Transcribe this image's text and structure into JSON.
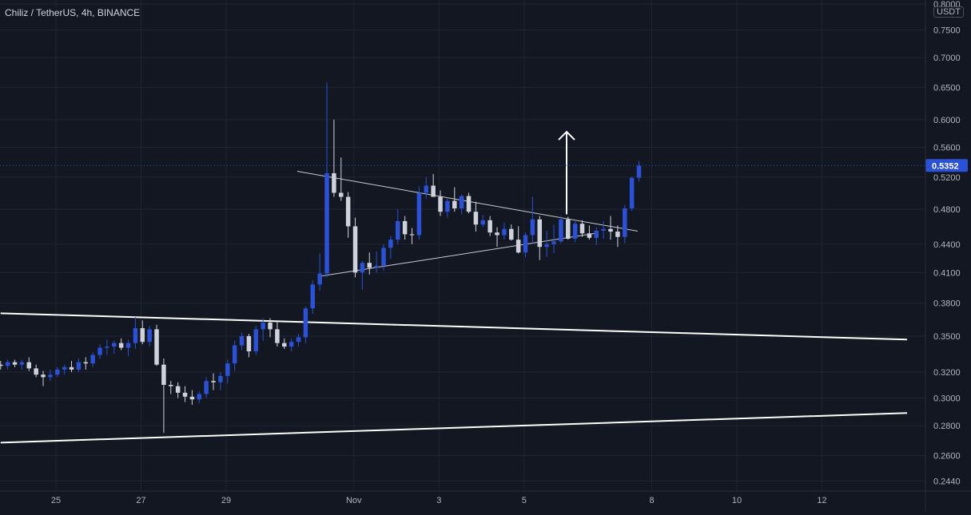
{
  "header": {
    "ticker": "Chiliz / TetherUS, 4h, BINANCE",
    "currency": "USDT"
  },
  "colors": {
    "background": "#131722",
    "grid": "#1f2433",
    "up": "#2a51d6",
    "down": "#cfd2da",
    "axis_text": "#b2b5be",
    "price_line": "#2a51d6",
    "trendline": "#ffffff"
  },
  "chart_data": {
    "type": "candlestick",
    "title": "Chiliz / TetherUS, 4h, BINANCE",
    "y_scale": "log",
    "ylim": [
      0.238,
      0.808
    ],
    "grid": true,
    "y_ticks": [
      "0.8000",
      "0.7500",
      "0.7000",
      "0.6500",
      "0.6000",
      "0.5600",
      "0.5200",
      "0.4800",
      "0.4400",
      "0.4100",
      "0.3800",
      "0.3500",
      "0.3200",
      "0.3000",
      "0.2800",
      "0.2600",
      "0.2440"
    ],
    "x_ticks": [
      {
        "label": "25",
        "day": 25
      },
      {
        "label": "27",
        "day": 27
      },
      {
        "label": "29",
        "day": 29
      },
      {
        "label": "Nov",
        "day": 32
      },
      {
        "label": "3",
        "day": 34
      },
      {
        "label": "5",
        "day": 36
      },
      {
        "label": "8",
        "day": 39
      },
      {
        "label": "10",
        "day": 41
      },
      {
        "label": "12",
        "day": 43
      }
    ],
    "last_price": "0.5352",
    "candles": [
      [
        0.326,
        0.329,
        0.322,
        0.325
      ],
      [
        0.325,
        0.33,
        0.322,
        0.328
      ],
      [
        0.328,
        0.33,
        0.324,
        0.326
      ],
      [
        0.326,
        0.33,
        0.322,
        0.328
      ],
      [
        0.328,
        0.332,
        0.321,
        0.323
      ],
      [
        0.323,
        0.326,
        0.316,
        0.318
      ],
      [
        0.318,
        0.321,
        0.309,
        0.316
      ],
      [
        0.316,
        0.322,
        0.313,
        0.318
      ],
      [
        0.318,
        0.324,
        0.316,
        0.322
      ],
      [
        0.322,
        0.326,
        0.318,
        0.324
      ],
      [
        0.324,
        0.329,
        0.32,
        0.322
      ],
      [
        0.322,
        0.331,
        0.32,
        0.328
      ],
      [
        0.328,
        0.332,
        0.322,
        0.327
      ],
      [
        0.327,
        0.336,
        0.324,
        0.334
      ],
      [
        0.334,
        0.343,
        0.331,
        0.34
      ],
      [
        0.34,
        0.347,
        0.334,
        0.341
      ],
      [
        0.341,
        0.346,
        0.335,
        0.344
      ],
      [
        0.344,
        0.348,
        0.338,
        0.34
      ],
      [
        0.34,
        0.347,
        0.333,
        0.344
      ],
      [
        0.344,
        0.367,
        0.339,
        0.357
      ],
      [
        0.357,
        0.364,
        0.343,
        0.345
      ],
      [
        0.345,
        0.359,
        0.341,
        0.356
      ],
      [
        0.356,
        0.36,
        0.325,
        0.326
      ],
      [
        0.326,
        0.331,
        0.275,
        0.31
      ],
      [
        0.31,
        0.313,
        0.303,
        0.309
      ],
      [
        0.309,
        0.312,
        0.3,
        0.304
      ],
      [
        0.304,
        0.309,
        0.297,
        0.301
      ],
      [
        0.301,
        0.306,
        0.295,
        0.299
      ],
      [
        0.299,
        0.305,
        0.296,
        0.303
      ],
      [
        0.303,
        0.316,
        0.3,
        0.313
      ],
      [
        0.313,
        0.319,
        0.306,
        0.312
      ],
      [
        0.312,
        0.32,
        0.306,
        0.317
      ],
      [
        0.317,
        0.33,
        0.311,
        0.327
      ],
      [
        0.327,
        0.346,
        0.321,
        0.342
      ],
      [
        0.342,
        0.353,
        0.338,
        0.35
      ],
      [
        0.35,
        0.352,
        0.332,
        0.337
      ],
      [
        0.337,
        0.359,
        0.334,
        0.356
      ],
      [
        0.356,
        0.366,
        0.346,
        0.362
      ],
      [
        0.362,
        0.366,
        0.349,
        0.356
      ],
      [
        0.356,
        0.363,
        0.341,
        0.344
      ],
      [
        0.344,
        0.348,
        0.339,
        0.341
      ],
      [
        0.341,
        0.348,
        0.337,
        0.345
      ],
      [
        0.345,
        0.352,
        0.341,
        0.349
      ],
      [
        0.349,
        0.377,
        0.344,
        0.375
      ],
      [
        0.375,
        0.402,
        0.37,
        0.398
      ],
      [
        0.398,
        0.43,
        0.392,
        0.409
      ],
      [
        0.409,
        0.658,
        0.405,
        0.525
      ],
      [
        0.525,
        0.6,
        0.495,
        0.5
      ],
      [
        0.5,
        0.546,
        0.49,
        0.495
      ],
      [
        0.495,
        0.501,
        0.447,
        0.46
      ],
      [
        0.46,
        0.47,
        0.405,
        0.41
      ],
      [
        0.41,
        0.422,
        0.393,
        0.42
      ],
      [
        0.42,
        0.431,
        0.408,
        0.415
      ],
      [
        0.415,
        0.432,
        0.41,
        0.417
      ],
      [
        0.417,
        0.44,
        0.412,
        0.436
      ],
      [
        0.436,
        0.449,
        0.424,
        0.445
      ],
      [
        0.445,
        0.48,
        0.44,
        0.466
      ],
      [
        0.466,
        0.472,
        0.445,
        0.451
      ],
      [
        0.451,
        0.458,
        0.44,
        0.45
      ],
      [
        0.45,
        0.508,
        0.445,
        0.5
      ],
      [
        0.5,
        0.52,
        0.493,
        0.509
      ],
      [
        0.509,
        0.524,
        0.495,
        0.495
      ],
      [
        0.495,
        0.503,
        0.472,
        0.477
      ],
      [
        0.477,
        0.494,
        0.47,
        0.49
      ],
      [
        0.49,
        0.507,
        0.477,
        0.481
      ],
      [
        0.481,
        0.498,
        0.474,
        0.496
      ],
      [
        0.496,
        0.5,
        0.475,
        0.477
      ],
      [
        0.477,
        0.489,
        0.454,
        0.462
      ],
      [
        0.462,
        0.473,
        0.459,
        0.467
      ],
      [
        0.467,
        0.472,
        0.449,
        0.453
      ],
      [
        0.453,
        0.459,
        0.437,
        0.45
      ],
      [
        0.45,
        0.464,
        0.445,
        0.457
      ],
      [
        0.457,
        0.462,
        0.444,
        0.445
      ],
      [
        0.445,
        0.46,
        0.43,
        0.431
      ],
      [
        0.431,
        0.453,
        0.426,
        0.45
      ],
      [
        0.45,
        0.495,
        0.44,
        0.468
      ],
      [
        0.468,
        0.472,
        0.423,
        0.437
      ],
      [
        0.437,
        0.455,
        0.426,
        0.44
      ],
      [
        0.44,
        0.462,
        0.43,
        0.443
      ],
      [
        0.443,
        0.472,
        0.441,
        0.468
      ],
      [
        0.468,
        0.471,
        0.445,
        0.446
      ],
      [
        0.446,
        0.466,
        0.442,
        0.463
      ],
      [
        0.463,
        0.467,
        0.448,
        0.452
      ],
      [
        0.452,
        0.461,
        0.445,
        0.447
      ],
      [
        0.447,
        0.459,
        0.439,
        0.455
      ],
      [
        0.455,
        0.466,
        0.446,
        0.457
      ],
      [
        0.457,
        0.472,
        0.445,
        0.454
      ],
      [
        0.454,
        0.461,
        0.437,
        0.448
      ],
      [
        0.448,
        0.485,
        0.441,
        0.481
      ],
      [
        0.481,
        0.521,
        0.478,
        0.519
      ],
      [
        0.519,
        0.541,
        0.514,
        0.535
      ]
    ],
    "trendlines": [
      {
        "from": {
          "day": 23.7,
          "price": 0.3705
        },
        "to": {
          "day": 45.0,
          "price": 0.347
        }
      },
      {
        "from": {
          "day": 23.7,
          "price": 0.2685
        },
        "to": {
          "day": 45.0,
          "price": 0.289
        }
      },
      {
        "from": {
          "day": 30.67,
          "price": 0.5275
        },
        "to": {
          "day": 38.67,
          "price": 0.4545
        }
      },
      {
        "from": {
          "day": 31.17,
          "price": 0.406
        },
        "to": {
          "day": 37.67,
          "price": 0.452
        }
      }
    ],
    "arrow": {
      "day": 37.0,
      "from_price": 0.474,
      "to_price": 0.582
    }
  }
}
